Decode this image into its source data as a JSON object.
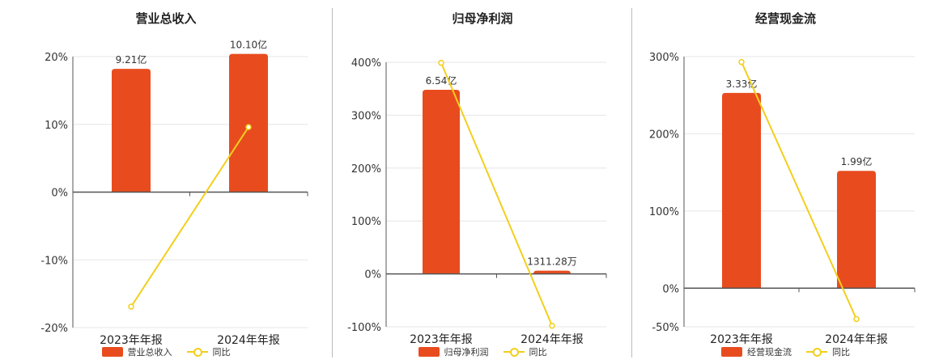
{
  "colors": {
    "bar": "#e84c1e",
    "line": "#f2cf1d",
    "axis": "#555555",
    "grid": "#e6e6e6"
  },
  "chart_data": [
    {
      "type": "bar",
      "title": "营业总收入",
      "categories": [
        "2023年年报",
        "2024年年报"
      ],
      "series": [
        {
          "name": "营业总收入",
          "type": "bar",
          "values": [
            9.21,
            10.1
          ],
          "labels": [
            "9.21亿",
            "10.10亿"
          ]
        },
        {
          "name": "同比",
          "type": "line",
          "values": [
            -16.9,
            9.6
          ]
        }
      ],
      "yticks": [
        "20%",
        "10%",
        "0%",
        "-10%",
        "-20%"
      ],
      "ylim": [
        -20,
        20
      ],
      "grid": true,
      "legend": "bottom"
    },
    {
      "type": "bar",
      "title": "归母净利润",
      "categories": [
        "2023年年报",
        "2024年年报"
      ],
      "series": [
        {
          "name": "归母净利润",
          "type": "bar",
          "values": [
            6.54,
            0.131128
          ],
          "labels": [
            "6.54亿",
            "1311.28万"
          ]
        },
        {
          "name": "同比",
          "type": "line",
          "values": [
            399,
            -98
          ]
        }
      ],
      "yticks": [
        "400%",
        "300%",
        "200%",
        "100%",
        "0%",
        "-100%"
      ],
      "ylim": [
        -100,
        400
      ],
      "grid": true,
      "legend": "bottom"
    },
    {
      "type": "bar",
      "title": "经营现金流",
      "categories": [
        "2023年年报",
        "2024年年报"
      ],
      "series": [
        {
          "name": "经营现金流",
          "type": "bar",
          "values": [
            3.33,
            1.99
          ],
          "labels": [
            "3.33亿",
            "1.99亿"
          ]
        },
        {
          "name": "同比",
          "type": "line",
          "values": [
            293,
            -40
          ]
        }
      ],
      "yticks": [
        "300%",
        "200%",
        "100%",
        "0%",
        "-50%"
      ],
      "ylim": [
        -50,
        300
      ],
      "grid": true,
      "legend": "bottom"
    }
  ]
}
